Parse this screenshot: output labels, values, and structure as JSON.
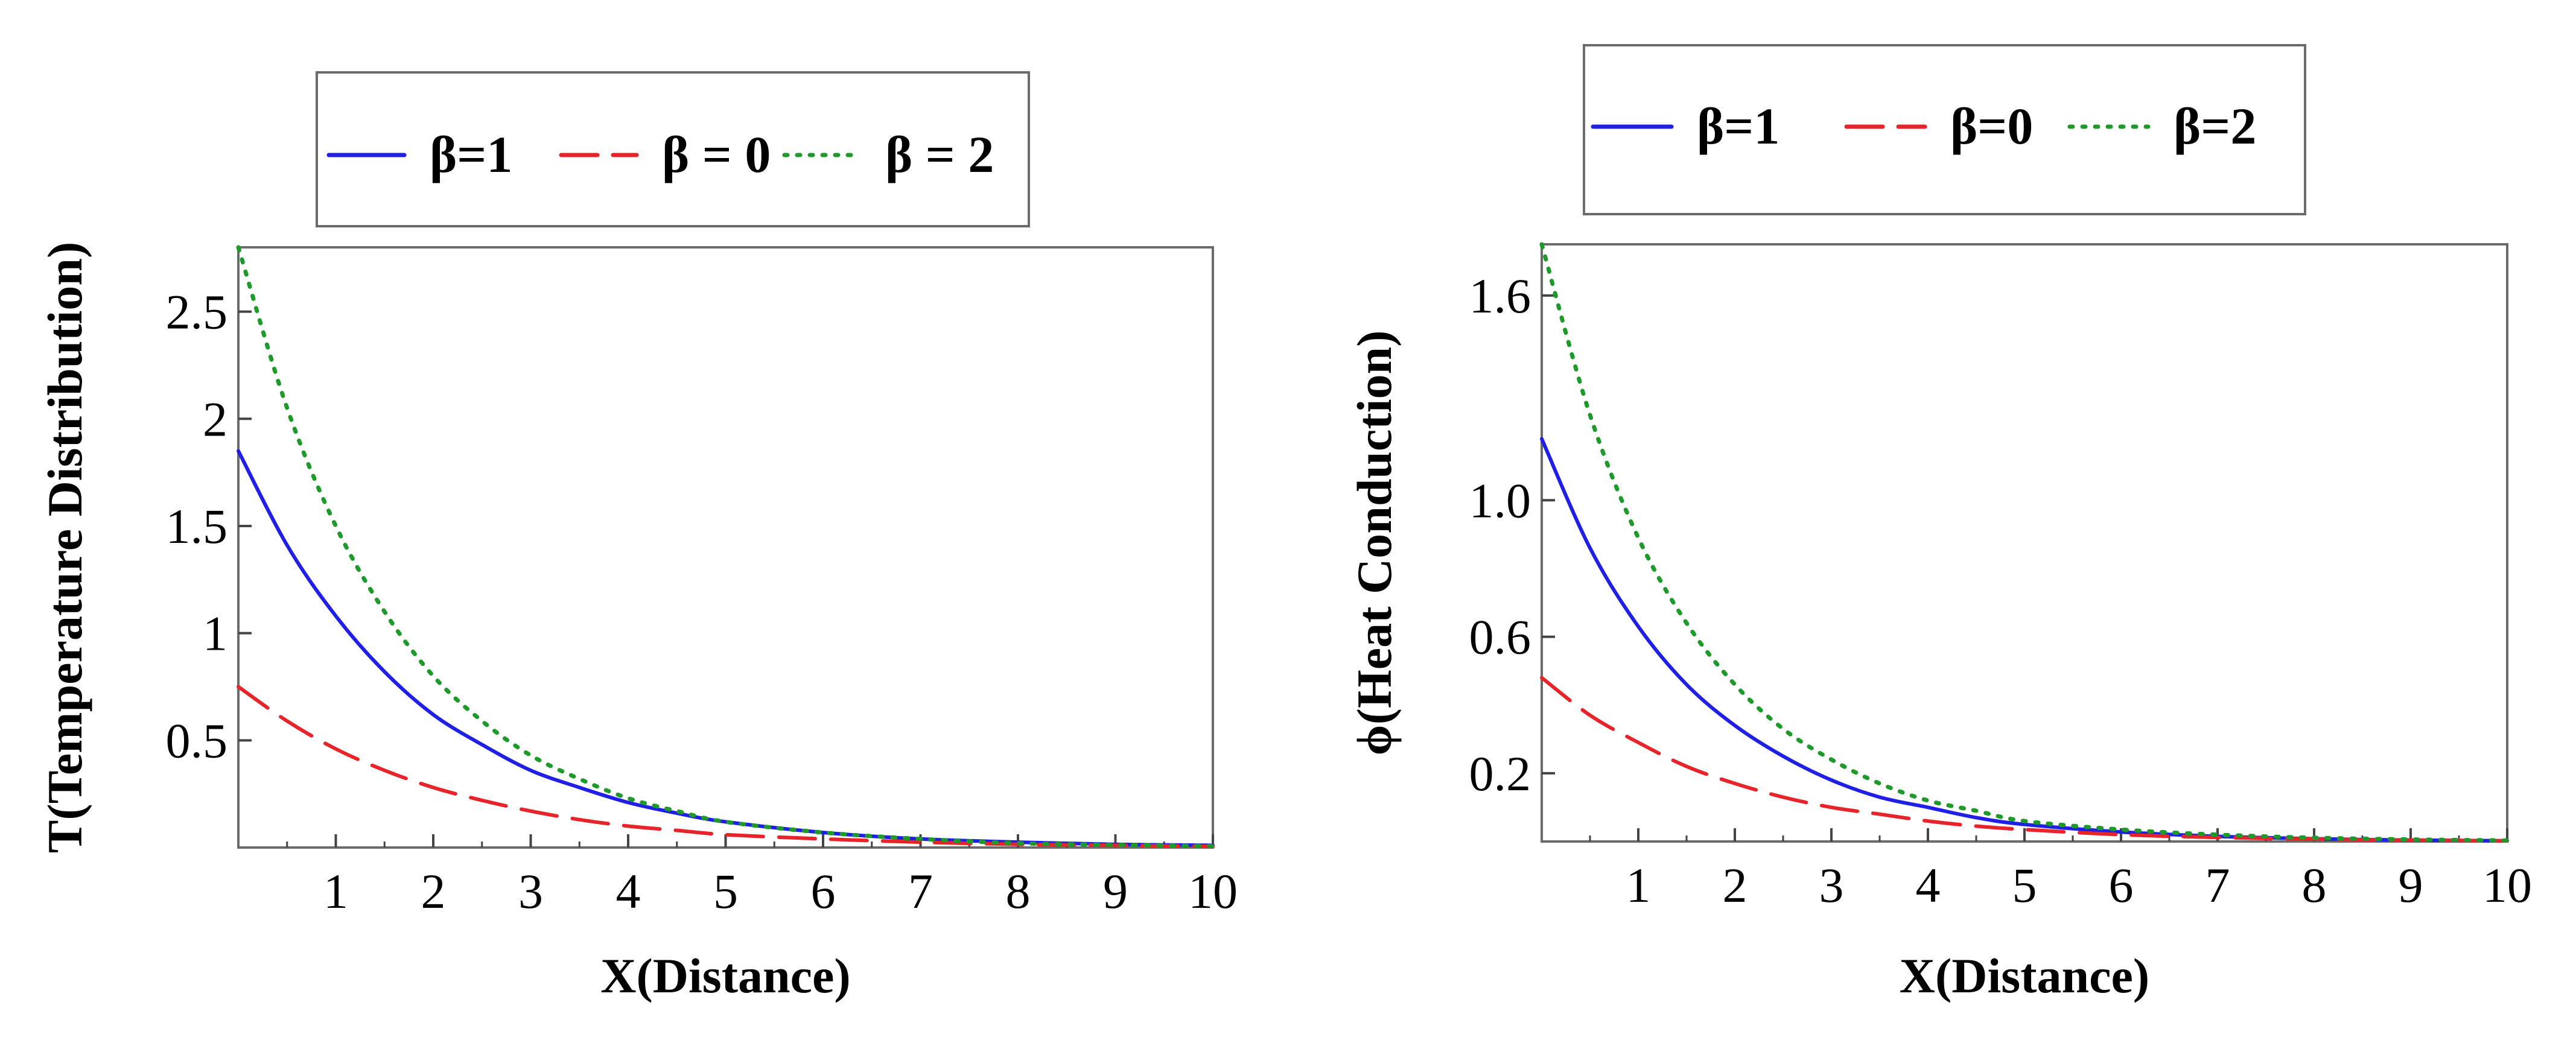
{
  "chart_data": [
    {
      "type": "line",
      "title": "",
      "xlabel": "X(Distance)",
      "ylabel": "T(Temperature Distribution)",
      "xlim": [
        0,
        10
      ],
      "ylim": [
        0,
        2.8
      ],
      "xticks": [
        1,
        2,
        3,
        4,
        5,
        6,
        7,
        8,
        9,
        10
      ],
      "xtick_labels": [
        "1",
        "2",
        "3",
        "4",
        "5",
        "6",
        "7",
        "8",
        "9",
        "10"
      ],
      "yticks": [
        0.5,
        1,
        1.5,
        2,
        2.5
      ],
      "ytick_labels": [
        "0.5",
        "1",
        "1.5",
        "2",
        "2.5"
      ],
      "grid": false,
      "legend_position": "top",
      "series": [
        {
          "name": "β=1",
          "legend_label": "β=1",
          "color": "#1f1fe6",
          "dash": "solid",
          "x": [
            0,
            0.5,
            1,
            1.5,
            2,
            2.5,
            3,
            3.5,
            4,
            4.5,
            5,
            6,
            7,
            8,
            9,
            10
          ],
          "y": [
            1.85,
            1.41,
            1.08,
            0.82,
            0.62,
            0.48,
            0.36,
            0.28,
            0.21,
            0.16,
            0.12,
            0.07,
            0.04,
            0.025,
            0.015,
            0.01
          ]
        },
        {
          "name": "β = 0",
          "legend_label": "β = 0",
          "color": "#e8242b",
          "dash": "dashed",
          "x": [
            0,
            0.5,
            1,
            1.5,
            2,
            2.5,
            3,
            3.5,
            4,
            4.5,
            5,
            6,
            7,
            8,
            9,
            10
          ],
          "y": [
            0.75,
            0.59,
            0.46,
            0.36,
            0.28,
            0.22,
            0.17,
            0.13,
            0.1,
            0.08,
            0.06,
            0.04,
            0.025,
            0.015,
            0.01,
            0.005
          ]
        },
        {
          "name": "β = 2",
          "legend_label": "β = 2",
          "color": "#1e9a2a",
          "dash": "dotted",
          "x": [
            0,
            0.5,
            1,
            1.5,
            2,
            2.5,
            3,
            3.5,
            4,
            4.5,
            5,
            6,
            7,
            8,
            9,
            10
          ],
          "y": [
            2.8,
            2.05,
            1.5,
            1.1,
            0.8,
            0.59,
            0.43,
            0.32,
            0.23,
            0.17,
            0.12,
            0.07,
            0.04,
            0.02,
            0.012,
            0.007
          ]
        }
      ]
    },
    {
      "type": "line",
      "title": "",
      "xlabel": "X(Distance)",
      "ylabel": "ϕ(Heat Conduction)",
      "xlim": [
        0,
        10
      ],
      "ylim": [
        0,
        1.75
      ],
      "xticks": [
        1,
        2,
        3,
        4,
        5,
        6,
        7,
        8,
        9,
        10
      ],
      "xtick_labels": [
        "1",
        "2",
        "3",
        "4",
        "5",
        "6",
        "7",
        "8",
        "9",
        "10"
      ],
      "yticks": [
        0.2,
        0.6,
        1.0,
        1.6
      ],
      "ytick_labels": [
        "0.2",
        "0.6",
        "1.0",
        "1.6"
      ],
      "grid": false,
      "legend_position": "top",
      "series": [
        {
          "name": "β=1",
          "legend_label": "β=1",
          "color": "#1f1fe6",
          "dash": "solid",
          "x": [
            0,
            0.5,
            1,
            1.5,
            2,
            2.5,
            3,
            3.5,
            4,
            4.5,
            5,
            6,
            7,
            8,
            9,
            10
          ],
          "y": [
            1.18,
            0.86,
            0.63,
            0.46,
            0.34,
            0.25,
            0.18,
            0.13,
            0.1,
            0.07,
            0.05,
            0.028,
            0.015,
            0.008,
            0.004,
            0.002
          ]
        },
        {
          "name": "β=0",
          "legend_label": "β=0",
          "color": "#e8242b",
          "dash": "dashed",
          "x": [
            0,
            0.5,
            1,
            1.5,
            2,
            2.5,
            3,
            3.5,
            4,
            4.5,
            5,
            6,
            7,
            8,
            9,
            10
          ],
          "y": [
            0.48,
            0.37,
            0.29,
            0.22,
            0.17,
            0.13,
            0.1,
            0.08,
            0.06,
            0.045,
            0.035,
            0.02,
            0.012,
            0.007,
            0.004,
            0.002
          ]
        },
        {
          "name": "β=2",
          "legend_label": "β=2",
          "color": "#1e9a2a",
          "dash": "dotted",
          "x": [
            0,
            0.5,
            1,
            1.5,
            2,
            2.5,
            3,
            3.5,
            4,
            4.5,
            5,
            6,
            7,
            8,
            9,
            10
          ],
          "y": [
            1.75,
            1.25,
            0.89,
            0.64,
            0.46,
            0.33,
            0.24,
            0.17,
            0.12,
            0.09,
            0.06,
            0.035,
            0.02,
            0.011,
            0.006,
            0.003
          ]
        }
      ]
    }
  ]
}
